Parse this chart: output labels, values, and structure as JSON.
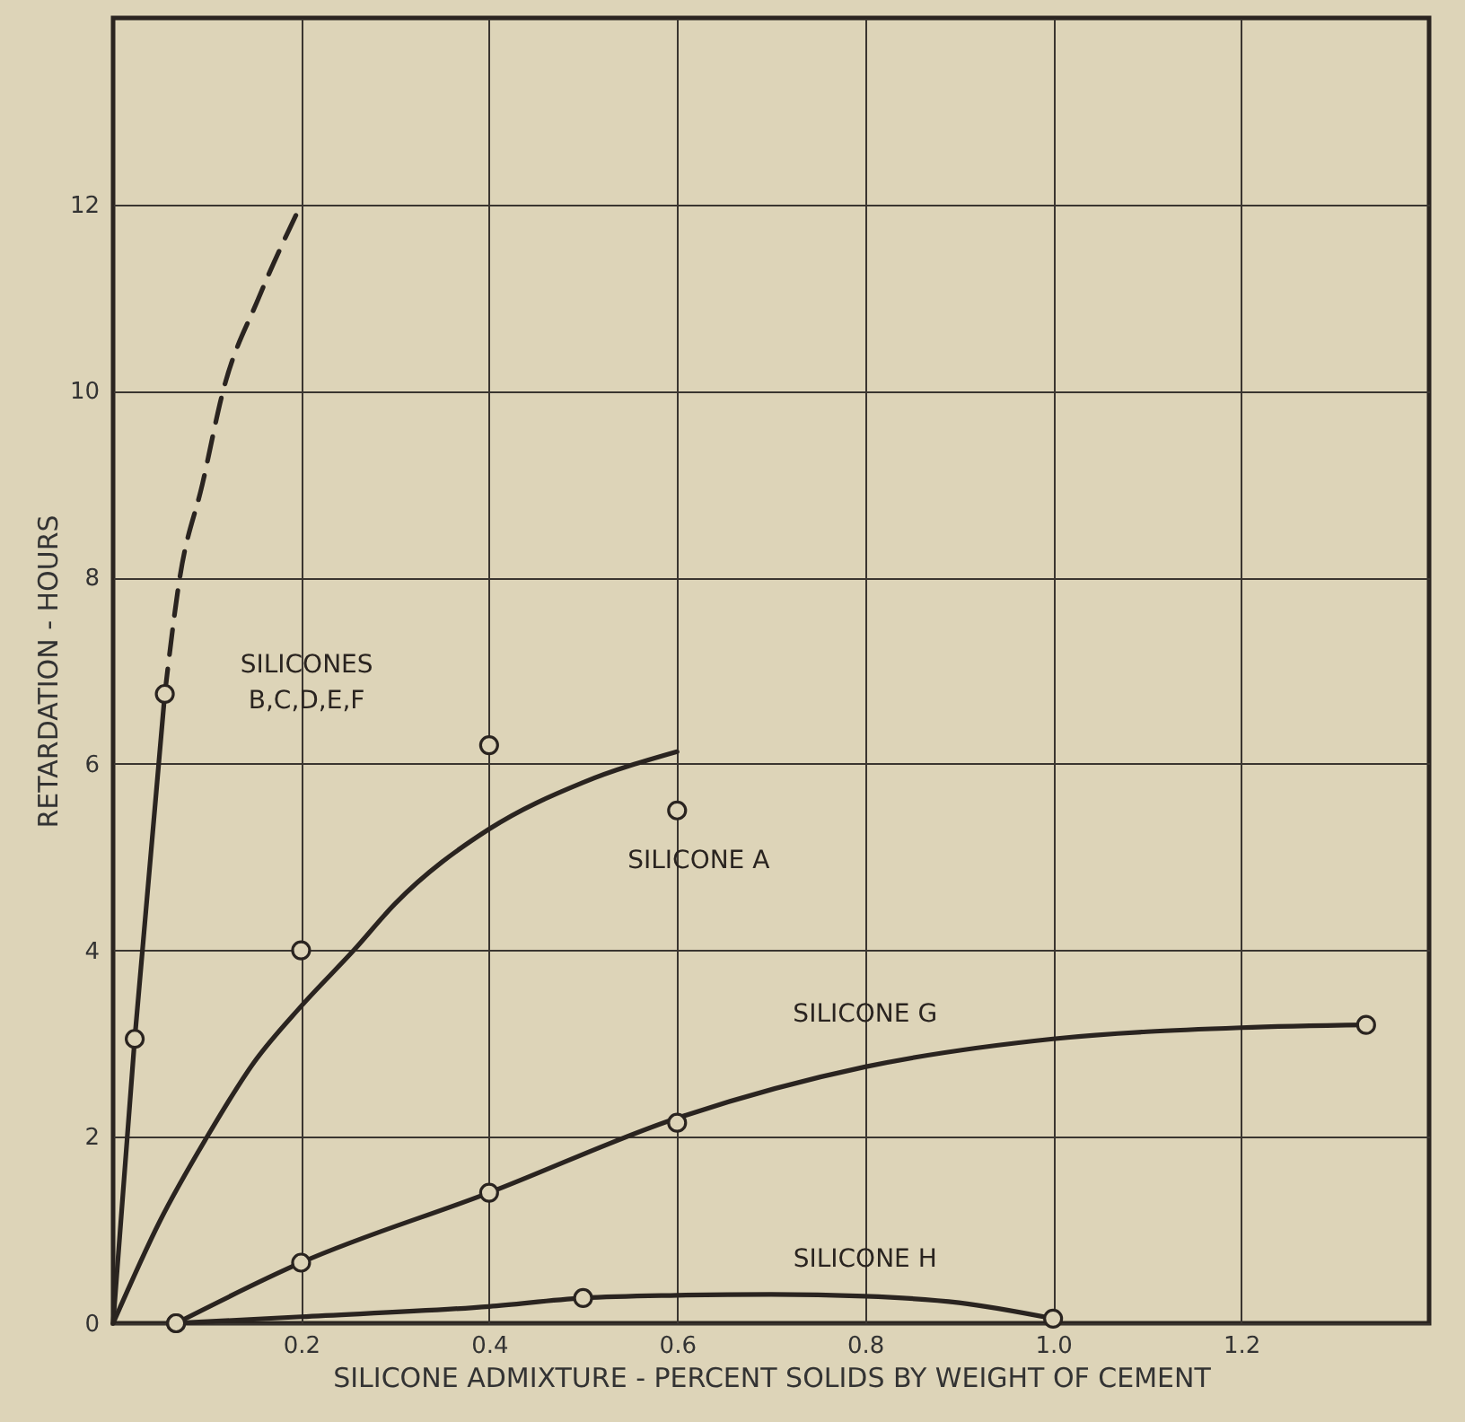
{
  "chart_data": {
    "type": "line",
    "xlabel": "SILICONE ADMIXTURE - PERCENT SOLIDS BY WEIGHT OF CEMENT",
    "ylabel": "RETARDATION - HOURS",
    "xlim": [
      0,
      1.4
    ],
    "xticks": [
      0.2,
      0.4,
      0.6,
      0.8,
      {
        "value": 1.0,
        "label": "1.0"
      },
      1.2
    ],
    "ylim": [
      0,
      14
    ],
    "yticks": [
      0,
      2,
      4,
      6,
      8,
      10,
      12
    ],
    "grid": true,
    "series": [
      {
        "color": "#2a2420",
        "line_style": "solid",
        "marker": "none",
        "x": [
          0,
          0.023,
          0.055
        ],
        "values": [
          0,
          3.05,
          6.75
        ]
      },
      {
        "color": "#2a2420",
        "line_style": "dashed",
        "marker": "none",
        "x": [
          0.055,
          0.071,
          0.095,
          0.117,
          0.155,
          0.2
        ],
        "values": [
          6.75,
          8,
          9,
          10,
          11,
          12
        ]
      },
      {
        "type": "scatter",
        "color": "#2a2420",
        "marker": "circle",
        "x": [
          0.023,
          0.055
        ],
        "values": [
          3.05,
          6.75
        ]
      },
      {
        "color": "#2a2420",
        "line_style": "solid",
        "marker": "none",
        "x": [
          0,
          0.05,
          0.1,
          0.15,
          0.2,
          0.256,
          0.3,
          0.4,
          0.5,
          0.6
        ],
        "values": [
          0,
          1.1,
          2.0,
          2.8,
          3.4,
          4.0,
          4.5,
          5.3,
          5.8,
          6.13
        ]
      },
      {
        "type": "scatter",
        "color": "#2a2420",
        "marker": "circle",
        "x": [
          0.2,
          0.4,
          0.6
        ],
        "values": [
          4.0,
          6.2,
          5.5
        ]
      },
      {
        "color": "#2a2420",
        "line_style": "solid",
        "marker": "none",
        "x": [
          0.067,
          0.2,
          0.4,
          0.6,
          0.8,
          1.0,
          1.2,
          1.333
        ],
        "values": [
          0,
          0.65,
          1.4,
          2.2,
          2.75,
          3.05,
          3.17,
          3.2
        ]
      },
      {
        "type": "scatter",
        "color": "#2a2420",
        "marker": "circle",
        "x": [
          0.067,
          0.2,
          0.4,
          0.6,
          1.333
        ],
        "values": [
          0,
          0.65,
          1.4,
          2.15,
          3.2
        ]
      },
      {
        "color": "#2a2420",
        "line_style": "solid",
        "marker": "none",
        "x": [
          0.067,
          0.2,
          0.4,
          0.5,
          0.6,
          0.7,
          0.8,
          0.9,
          1.0
        ],
        "values": [
          0,
          0.07,
          0.18,
          0.27,
          0.3,
          0.31,
          0.29,
          0.22,
          0.05
        ]
      },
      {
        "type": "scatter",
        "color": "#2a2420",
        "marker": "circle",
        "x": [
          0.067,
          0.5,
          1.0
        ],
        "values": [
          0,
          0.27,
          0.05
        ]
      }
    ],
    "annotations": [
      {
        "text": "SILICONES\nB,C,D,E,F",
        "x": 0.055,
        "y": 6.75
      },
      {
        "text": "SILICONE A",
        "x": 0.6,
        "y": 5.5
      },
      {
        "text": "SILICONE G",
        "x": 0.8,
        "y": 2.75
      },
      {
        "text": "SILICONE H",
        "x": 0.8,
        "y": 0.3
      }
    ]
  }
}
